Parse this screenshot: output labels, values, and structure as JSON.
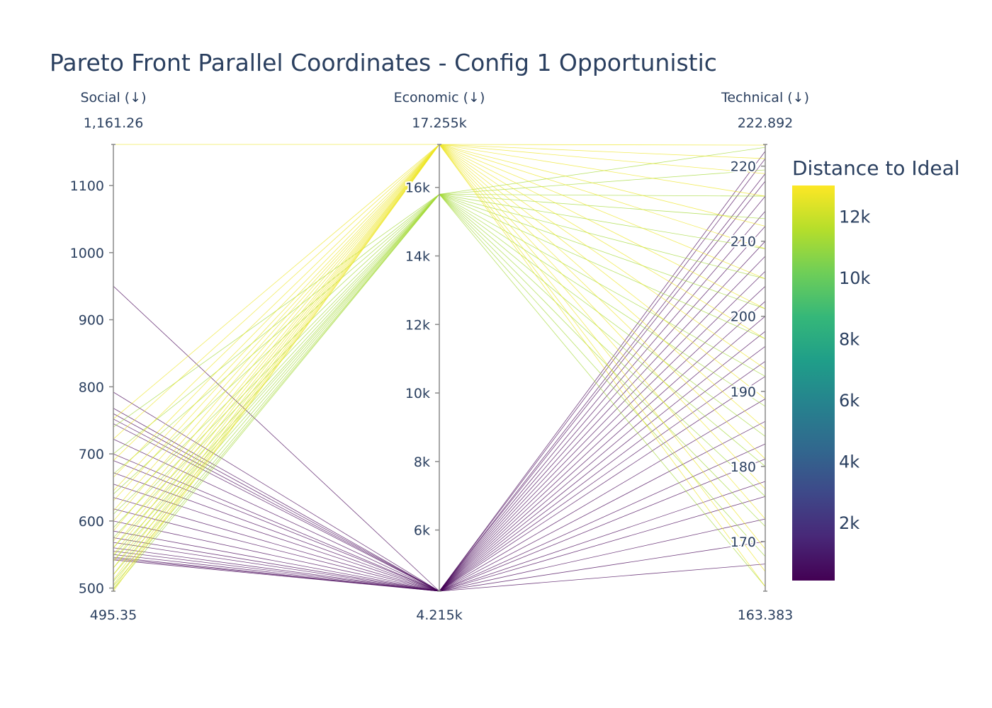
{
  "chart_data": {
    "type": "parallel-coordinates",
    "title": "Pareto Front Parallel Coordinates - Config 1 Opportunistic",
    "dimensions": [
      {
        "label": "Social (↓)",
        "range": [
          495.35,
          1161.26
        ],
        "range_labels": {
          "min": "495.35",
          "max": "1,161.26"
        },
        "ticks": [
          500,
          600,
          700,
          800,
          900,
          1000,
          1100
        ],
        "tick_labels": [
          "500",
          "600",
          "700",
          "800",
          "900",
          "1000",
          "1100"
        ]
      },
      {
        "label": "Economic (↓)",
        "range": [
          4215,
          17255
        ],
        "range_labels": {
          "min": "4.215k",
          "max": "17.255k"
        },
        "ticks": [
          6000,
          8000,
          10000,
          12000,
          14000,
          16000
        ],
        "tick_labels": [
          "6k",
          "8k",
          "10k",
          "12k",
          "14k",
          "16k"
        ]
      },
      {
        "label": "Technical (↓)",
        "range": [
          163.383,
          222.892
        ],
        "range_labels": {
          "min": "163.383",
          "max": "222.892"
        },
        "ticks": [
          170,
          180,
          190,
          200,
          210,
          220
        ],
        "tick_labels": [
          "170",
          "180",
          "190",
          "200",
          "210",
          "220"
        ]
      }
    ],
    "colorbar": {
      "title": "Distance to Ideal",
      "colorscale": "Viridis",
      "range": [
        100,
        13000
      ],
      "ticks": [
        2000,
        4000,
        6000,
        8000,
        10000,
        12000
      ],
      "tick_labels": [
        "2k",
        "4k",
        "6k",
        "8k",
        "10k",
        "12k"
      ]
    },
    "groups": {
      "low": {
        "economic": 4215,
        "color_value": 150,
        "social": [
          950,
          792,
          768,
          760,
          752,
          745,
          722,
          700,
          690,
          672,
          655,
          635,
          618,
          600,
          585,
          575,
          568,
          560,
          555,
          550,
          546,
          544,
          542
        ],
        "technical": [
          222,
          221,
          219,
          218,
          216,
          214,
          212,
          210,
          208,
          206,
          204,
          202,
          200,
          198,
          196,
          194,
          192,
          189,
          186,
          183,
          181,
          178,
          176,
          173,
          170,
          167
        ]
      },
      "mid": {
        "economic": 15800,
        "color_value": 11200,
        "social": [
          740,
          700,
          670,
          640,
          610,
          590,
          575,
          560,
          548,
          540,
          530,
          520,
          510,
          503,
          498
        ],
        "technical": [
          222.5,
          219.5,
          216,
          213,
          209,
          205,
          201,
          197,
          192,
          188,
          184,
          180,
          176,
          172,
          168,
          164
        ]
      },
      "high": {
        "economic": 17255,
        "color_value": 12700,
        "social": [
          1161.26,
          752,
          722,
          690,
          665,
          645,
          630,
          615,
          600,
          585,
          570,
          560,
          550,
          540,
          530,
          520,
          512,
          505,
          499,
          495.35
        ],
        "technical": [
          222.8,
          221,
          219,
          216,
          212,
          209,
          205,
          201,
          197,
          193,
          189,
          185,
          181,
          177,
          173,
          169,
          166,
          164
        ]
      }
    }
  }
}
